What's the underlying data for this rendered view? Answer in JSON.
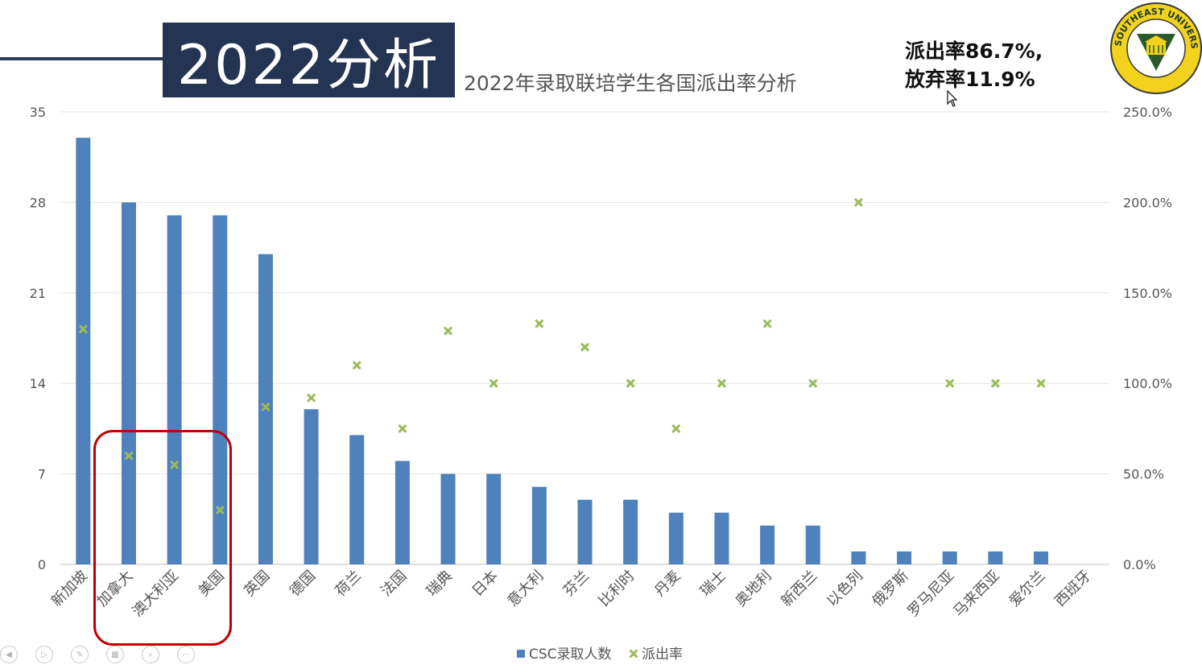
{
  "slide": {
    "heading": "2022分析",
    "note_line1": "派出率86.7%,",
    "note_line2": "放弃率11.9%",
    "cursor_icon": "arrow-cursor-icon",
    "logo_icon": "southeast-university-logo-icon",
    "logo_text": "SOUTHEAST UNIVERSITY",
    "toolbar_icons": [
      "back-icon",
      "play-icon",
      "pen-icon",
      "slides-icon",
      "zoom-icon",
      "more-icon"
    ]
  },
  "chart_data": {
    "type": "bar",
    "title": "2022年录取联培学生各国派出率分析",
    "categories": [
      "新加坡",
      "加拿大",
      "澳大利亚",
      "美国",
      "英国",
      "德国",
      "荷兰",
      "法国",
      "瑞典",
      "日本",
      "意大利",
      "芬兰",
      "比利时",
      "丹麦",
      "瑞士",
      "奥地利",
      "新西兰",
      "以色列",
      "俄罗斯",
      "罗马尼亚",
      "马来西亚",
      "爱尔兰",
      "西班牙"
    ],
    "series": [
      {
        "name": "CSC录取人数",
        "type": "bar",
        "axis": "left",
        "color": "#4f81bd",
        "values": [
          33,
          28,
          27,
          27,
          24,
          12,
          10,
          8,
          7,
          7,
          6,
          5,
          5,
          4,
          4,
          3,
          3,
          1,
          1,
          1,
          1,
          1,
          0
        ]
      },
      {
        "name": "派出率",
        "type": "scatter",
        "axis": "right",
        "color": "#9bbb59",
        "marker": "x",
        "values": [
          1.3,
          0.6,
          0.55,
          0.3,
          0.87,
          0.92,
          1.1,
          0.75,
          1.29,
          1.0,
          1.33,
          1.2,
          1.0,
          0.75,
          1.0,
          1.33,
          1.0,
          2.0,
          null,
          1.0,
          1.0,
          1.0,
          null
        ]
      }
    ],
    "y_left": {
      "ticks": [
        "35",
        "28",
        "21",
        "14",
        "7",
        "0"
      ],
      "ylim": [
        0,
        35
      ]
    },
    "y_right": {
      "ticks": [
        "250.0%",
        "200.0%",
        "150.0%",
        "100.0%",
        "50.0%",
        "0.0%"
      ],
      "ylim": [
        0,
        2.5
      ]
    },
    "grid": true,
    "legend": "bottom",
    "highlight": {
      "categories": [
        "加拿大",
        "澳大利亚",
        "美国"
      ],
      "color": "#c00000"
    }
  }
}
